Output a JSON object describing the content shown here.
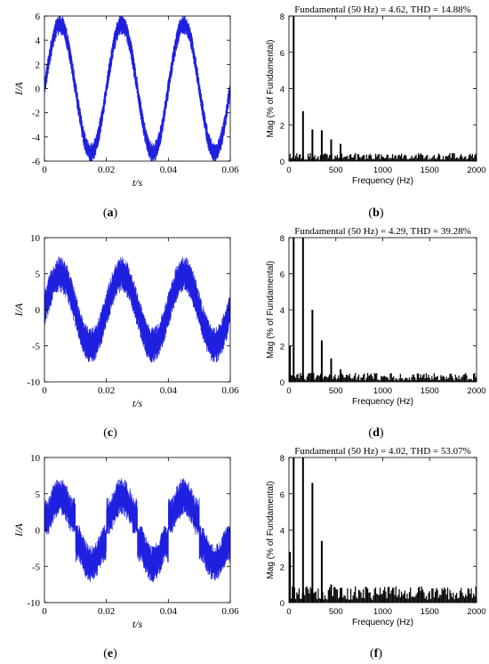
{
  "colors": {
    "waveform": "#1f1fe0",
    "spectrum": "#000000",
    "axis": "#000000"
  },
  "panel_labels": {
    "a": {
      "open": "(",
      "letter": "a",
      "close": ")"
    },
    "b": {
      "open": "(",
      "letter": "b",
      "close": ")"
    },
    "c": {
      "open": "(",
      "letter": "c",
      "close": ")"
    },
    "d": {
      "open": "(",
      "letter": "d",
      "close": ")"
    },
    "e": {
      "open": "(",
      "letter": "e",
      "close": ")"
    },
    "f": {
      "open": "(",
      "letter": "f",
      "close": ")"
    }
  },
  "chart_data": [
    {
      "id": "a",
      "type": "line",
      "xlabel": "t/s",
      "ylabel": "I/A",
      "xlim": [
        0,
        0.06
      ],
      "ylim": [
        -6,
        6
      ],
      "xticks": [
        0,
        0.02,
        0.04,
        0.06
      ],
      "xtick_labels": [
        "0",
        "0.02",
        "0.04",
        "0.06"
      ],
      "yticks": [
        -6,
        -4,
        -2,
        0,
        2,
        4,
        6
      ],
      "ytick_labels": [
        "-6",
        "-4",
        "-2",
        "0",
        "2",
        "4",
        "6"
      ],
      "waveform": {
        "frequency_hz": 50,
        "fundamental_amplitude": 4.62,
        "ripple_amplitude": 0.85,
        "flat_level": 0
      }
    },
    {
      "id": "b",
      "type": "bar",
      "title": "Fundamental (50 Hz) = 4.62, THD = 14.88%",
      "xlabel": "Frequency (Hz)",
      "ylabel": "Mag (% of Fundamental)",
      "xlim": [
        0,
        2000
      ],
      "ylim": [
        0,
        8
      ],
      "xticks": [
        0,
        500,
        1000,
        1500,
        2000
      ],
      "xtick_labels": [
        "0",
        "500",
        "1000",
        "1500",
        "2000"
      ],
      "yticks": [
        0,
        2,
        4,
        6,
        8
      ],
      "ytick_labels": [
        "0",
        "2",
        "4",
        "6",
        "8"
      ],
      "harmonics": [
        {
          "f": 50,
          "mag": 8
        },
        {
          "f": 150,
          "mag": 2.75
        },
        {
          "f": 250,
          "mag": 1.75
        },
        {
          "f": 350,
          "mag": 1.7
        },
        {
          "f": 450,
          "mag": 1.2
        },
        {
          "f": 550,
          "mag": 0.95
        }
      ],
      "noise_floor": 0.45
    },
    {
      "id": "c",
      "type": "line",
      "xlabel": "t/s",
      "ylabel": "I/A",
      "xlim": [
        0,
        0.06
      ],
      "ylim": [
        -10,
        10
      ],
      "xticks": [
        0,
        0.02,
        0.04,
        0.06
      ],
      "xtick_labels": [
        "0",
        "0.02",
        "0.04",
        "0.06"
      ],
      "yticks": [
        -10,
        -5,
        0,
        5,
        10
      ],
      "ytick_labels": [
        "-10",
        "-5",
        "0",
        "5",
        "10"
      ],
      "waveform": {
        "frequency_hz": 50,
        "fundamental_amplitude": 4.29,
        "ripple_amplitude": 2.5,
        "flat_level": 0
      }
    },
    {
      "id": "d",
      "type": "bar",
      "title": "Fundamental (50 Hz) = 4.29, THD = 39.28%",
      "xlabel": "Frequency (Hz)",
      "ylabel": "Mag (% of Fundamental)",
      "xlim": [
        0,
        2000
      ],
      "ylim": [
        0,
        8
      ],
      "xticks": [
        0,
        500,
        1000,
        1500,
        2000
      ],
      "xtick_labels": [
        "0",
        "500",
        "1000",
        "1500",
        "2000"
      ],
      "yticks": [
        0,
        2,
        4,
        6,
        8
      ],
      "ytick_labels": [
        "0",
        "2",
        "4",
        "6",
        "8"
      ],
      "harmonics": [
        {
          "f": 10,
          "mag": 2.0
        },
        {
          "f": 50,
          "mag": 8
        },
        {
          "f": 150,
          "mag": 8
        },
        {
          "f": 250,
          "mag": 4.0
        },
        {
          "f": 350,
          "mag": 2.3
        },
        {
          "f": 450,
          "mag": 1.3
        },
        {
          "f": 550,
          "mag": 0.7
        }
      ],
      "noise_floor": 0.5
    },
    {
      "id": "e",
      "type": "line",
      "xlabel": "t/s",
      "ylabel": "I/A",
      "xlim": [
        0,
        0.06
      ],
      "ylim": [
        -10,
        10
      ],
      "xticks": [
        0,
        0.02,
        0.04,
        0.06
      ],
      "xtick_labels": [
        "0",
        "0.02",
        "0.04",
        "0.06"
      ],
      "yticks": [
        -10,
        -5,
        0,
        5,
        10
      ],
      "ytick_labels": [
        "-10",
        "-5",
        "0",
        "5",
        "10"
      ],
      "waveform": {
        "frequency_hz": 50,
        "fundamental_amplitude": 4.02,
        "ripple_amplitude": 2.6,
        "flat_level": 2.0
      }
    },
    {
      "id": "f",
      "type": "bar",
      "title": "Fundamental (50 Hz) = 4.02, THD = 53.07%",
      "xlabel": "Frequency (Hz)",
      "ylabel": "Mag (% of Fundamental)",
      "xlim": [
        0,
        2000
      ],
      "ylim": [
        0,
        8
      ],
      "xticks": [
        0,
        500,
        1000,
        1500,
        2000
      ],
      "xtick_labels": [
        "0",
        "500",
        "1000",
        "1500",
        "2000"
      ],
      "yticks": [
        0,
        2,
        4,
        6,
        8
      ],
      "ytick_labels": [
        "0",
        "2",
        "4",
        "6",
        "8"
      ],
      "harmonics": [
        {
          "f": 10,
          "mag": 2.8
        },
        {
          "f": 50,
          "mag": 8
        },
        {
          "f": 150,
          "mag": 8
        },
        {
          "f": 250,
          "mag": 6.6
        },
        {
          "f": 350,
          "mag": 3.4
        },
        {
          "f": 450,
          "mag": 1.0
        },
        {
          "f": 550,
          "mag": 0.8
        }
      ],
      "noise_floor": 0.9
    }
  ]
}
